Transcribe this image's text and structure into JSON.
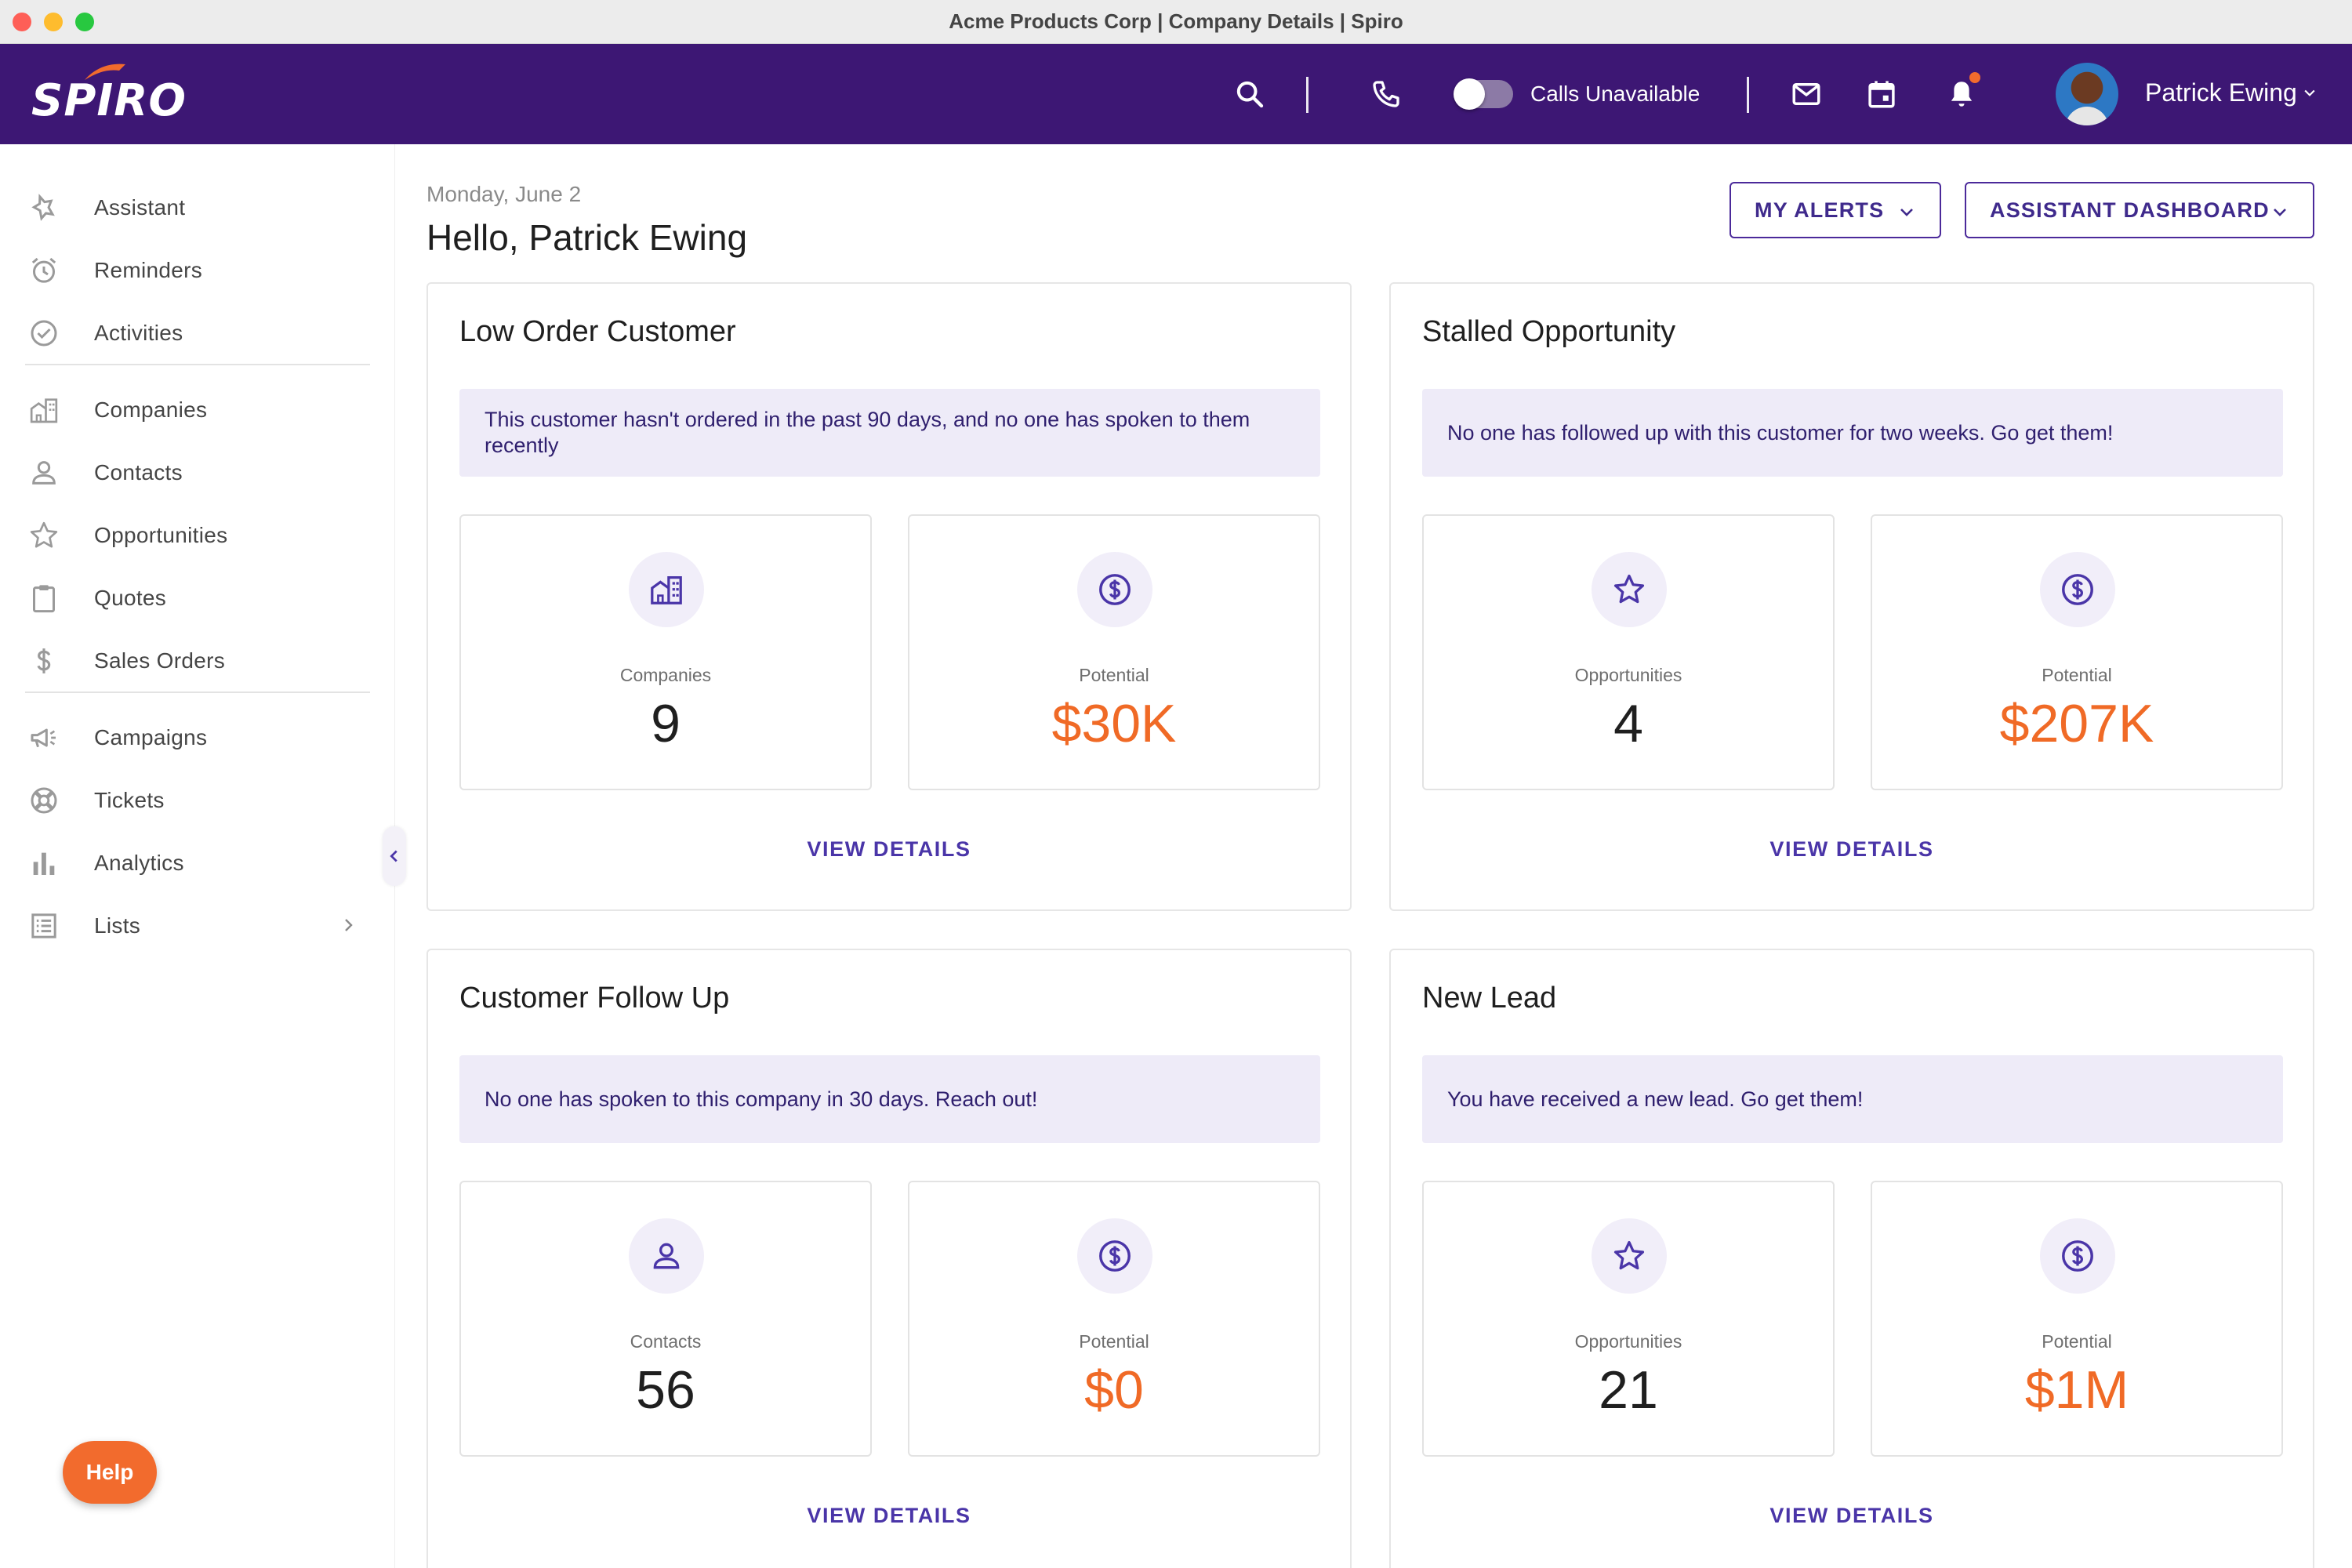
{
  "window": {
    "title": "Acme Products Corp | Company Details | Spiro"
  },
  "topnav": {
    "logo": "SPIRO",
    "calls_label": "Calls Unavailable",
    "user_name": "Patrick Ewing"
  },
  "sidebar": {
    "items": [
      {
        "label": "Assistant",
        "icon": "assistant-icon"
      },
      {
        "label": "Reminders",
        "icon": "alarm-clock-icon"
      },
      {
        "label": "Activities",
        "icon": "check-circle-icon"
      },
      {
        "label": "Companies",
        "icon": "building-icon"
      },
      {
        "label": "Contacts",
        "icon": "person-icon"
      },
      {
        "label": "Opportunities",
        "icon": "star-icon"
      },
      {
        "label": "Quotes",
        "icon": "clipboard-icon"
      },
      {
        "label": "Sales Orders",
        "icon": "dollar-icon"
      },
      {
        "label": "Campaigns",
        "icon": "megaphone-icon"
      },
      {
        "label": "Tickets",
        "icon": "lifebuoy-icon"
      },
      {
        "label": "Analytics",
        "icon": "bar-chart-icon"
      },
      {
        "label": "Lists",
        "icon": "list-icon"
      }
    ],
    "help_label": "Help"
  },
  "header": {
    "date": "Monday, June 2",
    "greeting": "Hello, Patrick Ewing",
    "my_alerts": "MY ALERTS",
    "assistant_dashboard": "ASSISTANT DASHBOARD"
  },
  "cards": [
    {
      "title": "Low Order Customer",
      "message": "This customer hasn't ordered in the past 90 days, and no one has spoken to them recently",
      "stat1": {
        "icon": "building-icon",
        "label": "Companies",
        "value": "9"
      },
      "stat2": {
        "icon": "dollar-circle-icon",
        "label": "Potential",
        "value": "$30K"
      },
      "action": "VIEW DETAILS"
    },
    {
      "title": "Stalled Opportunity",
      "message": "No one has followed up with this customer for two weeks. Go get them!",
      "stat1": {
        "icon": "star-icon",
        "label": "Opportunities",
        "value": "4"
      },
      "stat2": {
        "icon": "dollar-circle-icon",
        "label": "Potential",
        "value": "$207K"
      },
      "action": "VIEW DETAILS"
    },
    {
      "title": "Customer Follow Up",
      "message": "No one has spoken to this company in 30 days. Reach out!",
      "stat1": {
        "icon": "person-icon",
        "label": "Contacts",
        "value": "56"
      },
      "stat2": {
        "icon": "dollar-circle-icon",
        "label": "Potential",
        "value": "$0"
      },
      "action": "VIEW DETAILS"
    },
    {
      "title": "New Lead",
      "message": "You have received a new lead. Go get them!",
      "stat1": {
        "icon": "star-icon",
        "label": "Opportunities",
        "value": "21"
      },
      "stat2": {
        "icon": "dollar-circle-icon",
        "label": "Potential",
        "value": "$1M"
      },
      "action": "VIEW DETAILS"
    }
  ],
  "colors": {
    "nav_bg": "#3d1774",
    "accent": "#4a35a8",
    "money": "#f06a26",
    "message_bg": "#eeebf8"
  }
}
